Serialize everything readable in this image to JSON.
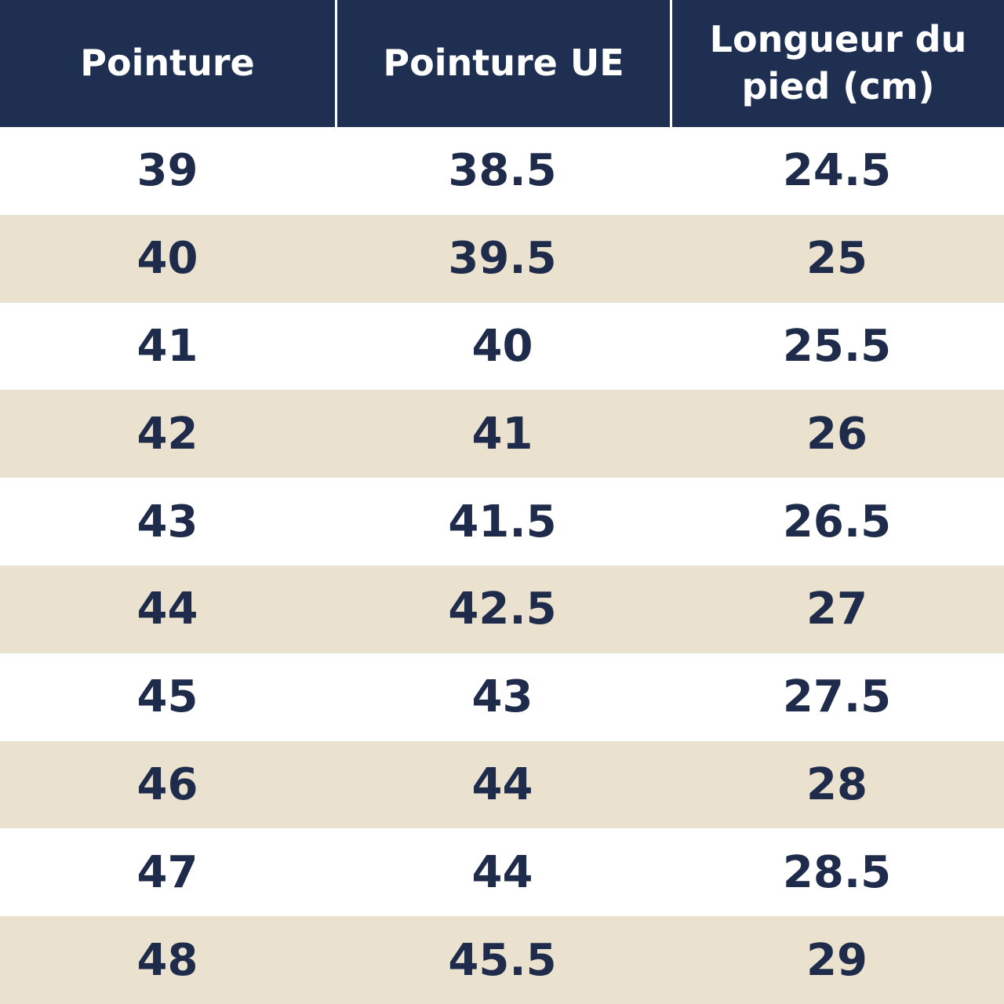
{
  "table": {
    "header": [
      "Pointure",
      "Pointure UE",
      "Longueur du pied (cm)"
    ],
    "rows": [
      [
        39,
        38.5,
        24.5
      ],
      [
        40,
        39.5,
        25
      ],
      [
        41,
        40,
        25.5
      ],
      [
        42,
        41,
        26
      ],
      [
        43,
        41.5,
        26.5
      ],
      [
        44,
        42.5,
        27
      ],
      [
        45,
        43,
        27.5
      ],
      [
        46,
        44,
        28
      ],
      [
        47,
        44,
        28.5
      ],
      [
        48,
        45.5,
        29
      ]
    ]
  }
}
